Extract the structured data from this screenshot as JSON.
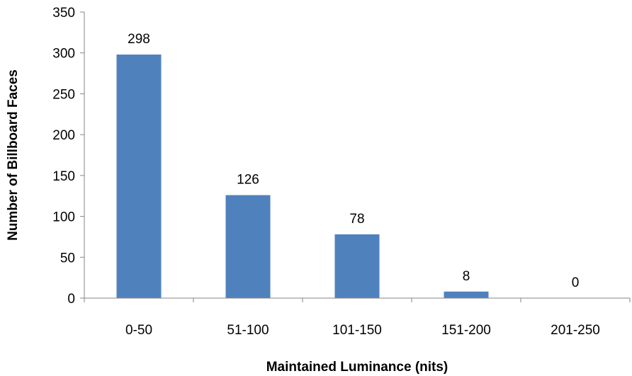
{
  "chart_data": {
    "type": "bar",
    "title": "",
    "xlabel": "Maintained Luminance (nits)",
    "ylabel": "Number of Billboard Faces",
    "categories": [
      "0-50",
      "51-100",
      "101-150",
      "151-200",
      "201-250"
    ],
    "values": [
      298,
      126,
      78,
      8,
      0
    ],
    "data_labels": [
      "298",
      "126",
      "78",
      "8",
      "0"
    ],
    "ylim": [
      0,
      350
    ],
    "yticks": [
      0,
      50,
      100,
      150,
      200,
      250,
      300,
      350
    ],
    "grid": false,
    "legend": "none",
    "bar_color": "#4F81BD",
    "axis_color": "#868686"
  }
}
